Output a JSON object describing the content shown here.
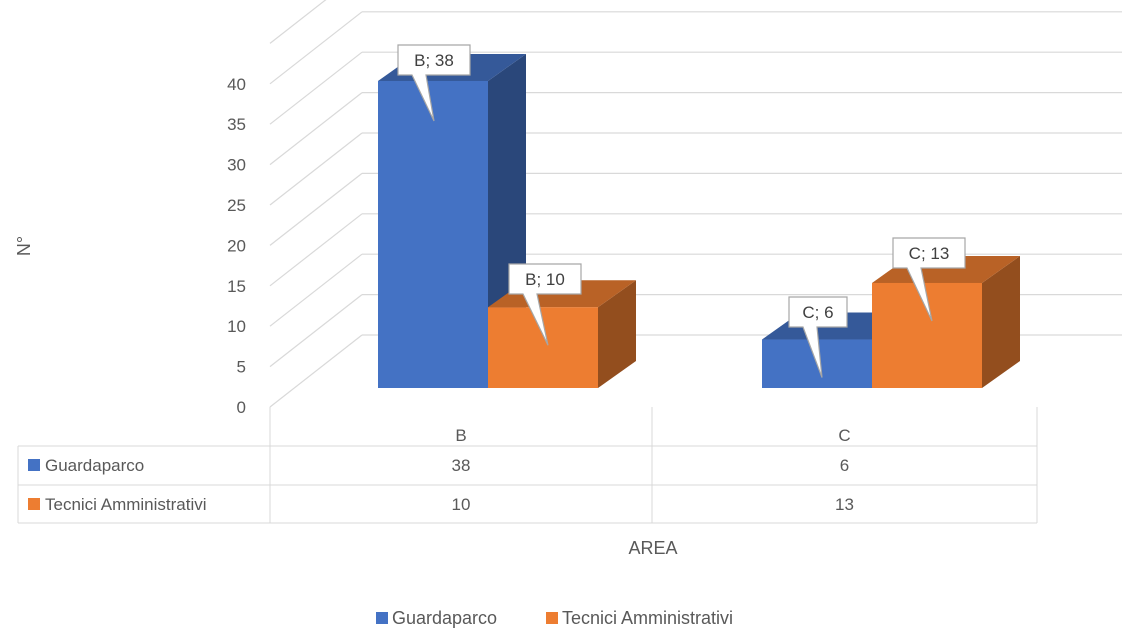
{
  "colors": {
    "series_0": "#4472c4",
    "series_1": "#ed7d31"
  },
  "chart_data": {
    "type": "bar",
    "title": "",
    "xlabel": "AREA",
    "ylabel": "N°",
    "ylim": [
      0,
      40
    ],
    "yticks": [
      "0",
      "5",
      "10",
      "15",
      "20",
      "25",
      "30",
      "35",
      "40"
    ],
    "categories": [
      "B",
      "C"
    ],
    "series": [
      {
        "name": "Guardaparco",
        "values": [
          38,
          6
        ]
      },
      {
        "name": "Tecnici Amministrativi",
        "values": [
          10,
          13
        ]
      }
    ],
    "data_labels": [
      [
        "B; 38",
        "C; 6"
      ],
      [
        "B; 10",
        "C; 13"
      ]
    ],
    "data_table": [
      [
        "38",
        "6"
      ],
      [
        "10",
        "13"
      ]
    ],
    "grid": true,
    "style": "3d-clustered-column",
    "legend": "bottom"
  }
}
